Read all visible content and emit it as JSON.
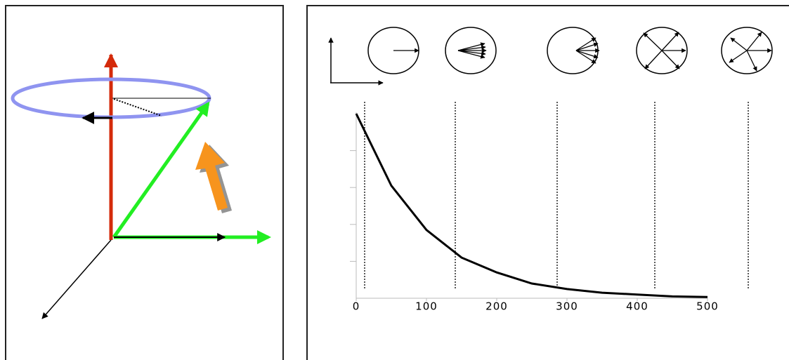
{
  "chart_data": {
    "type": "line",
    "x": [
      0,
      50,
      100,
      150,
      200,
      250,
      300,
      350,
      400,
      450,
      500
    ],
    "values": [
      1,
      0.61,
      0.37,
      0.22,
      0.14,
      0.08,
      0.05,
      0.03,
      0.02,
      0.01,
      0.007
    ],
    "color": "#000000",
    "xlim": [
      0,
      500
    ],
    "xticks": [
      0,
      100,
      200,
      300,
      400,
      500
    ],
    "ylim": [
      0,
      1
    ],
    "yticks": [
      0.2,
      0.4,
      0.6,
      0.8
    ],
    "markers": [
      12,
      141,
      286,
      425,
      558
    ]
  }
}
